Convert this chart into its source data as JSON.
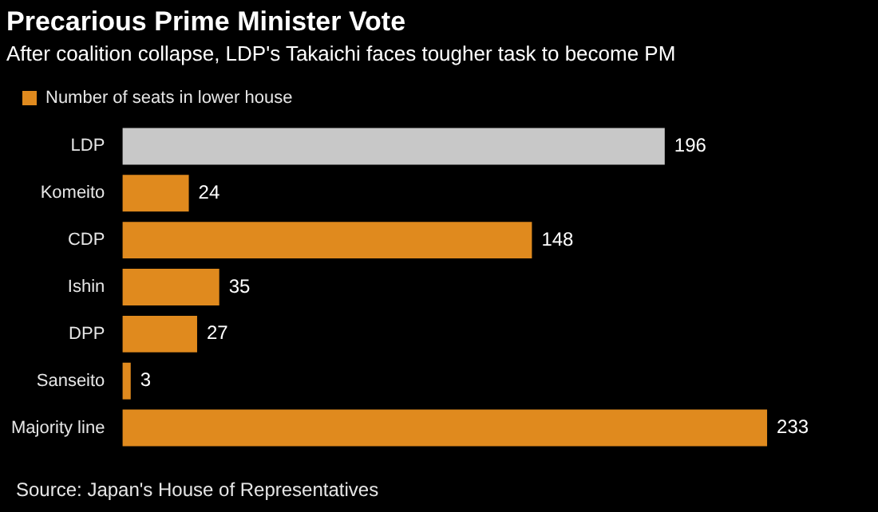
{
  "chart_data": {
    "type": "bar",
    "orientation": "horizontal",
    "title": "Precarious Prime Minister Vote",
    "subtitle": "After coalition collapse, LDP's Takaichi faces tougher task to become PM",
    "categories": [
      "LDP",
      "Komeito",
      "CDP",
      "Ishin",
      "DPP",
      "Sanseito",
      "Majority line"
    ],
    "series": [
      {
        "name": "Number of seats in lower house",
        "values": [
          196,
          24,
          148,
          35,
          27,
          3,
          233
        ]
      }
    ],
    "colors": [
      "#c8c8c8",
      "#e08a1e",
      "#e08a1e",
      "#e08a1e",
      "#e08a1e",
      "#e08a1e",
      "#e08a1e"
    ],
    "data_labels": true,
    "legend": "top left",
    "annotations": [
      "Source: Japan's House of Representatives"
    ]
  }
}
